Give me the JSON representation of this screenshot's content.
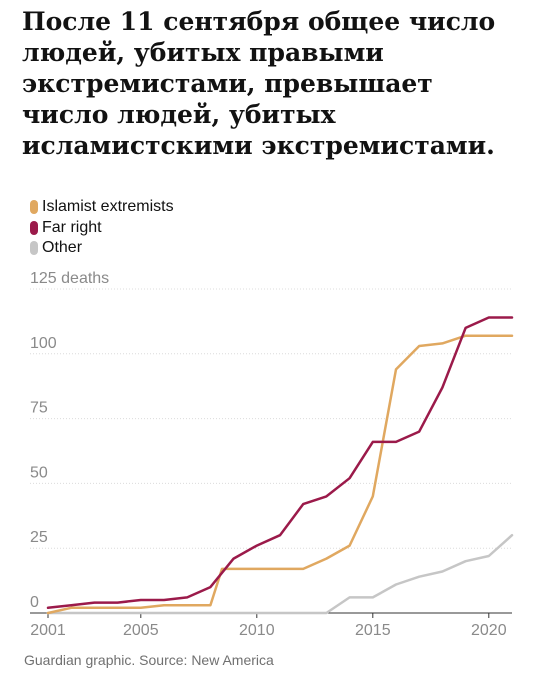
{
  "headline": "После 11 сентября общее число людей, убитых правыми экстремистами, превышает число людей, убитых исламистскими экстремистами.",
  "source": "Guardian graphic. Source: New America",
  "colors": {
    "islamist": "#e0a860",
    "far_right": "#9b1a4a",
    "other": "#c6c6c6",
    "grid": "#dcdcdc",
    "axis": "#333333",
    "tick_text": "#8a8a8a"
  },
  "chart_data": {
    "type": "line",
    "title": "После 11 сентября общее число людей, убитых правыми экстремистами, превышает число людей, убитых исламистскими экстремистами.",
    "xlabel": "",
    "ylabel": "",
    "xlim": [
      2001,
      2021
    ],
    "ylim": [
      0,
      125
    ],
    "grid": true,
    "legend": "top-left",
    "x_ticks": [
      "2001",
      "2005",
      "2010",
      "2015",
      "2020"
    ],
    "y_ticks": [
      "125 deaths",
      "100",
      "75",
      "50",
      "25",
      "0"
    ],
    "series": [
      {
        "name": "Islamist extremists",
        "color": "#e0a860",
        "x": [
          2001,
          2002,
          2003,
          2004,
          2005,
          2006,
          2007,
          2008,
          2008.5,
          2009,
          2010,
          2011,
          2012,
          2013,
          2014,
          2015,
          2016,
          2017,
          2018,
          2019,
          2020,
          2021
        ],
        "values": [
          0,
          2,
          2,
          2,
          2,
          3,
          3,
          3,
          17,
          17,
          17,
          17,
          17,
          21,
          26,
          45,
          94,
          103,
          104,
          107,
          107,
          107
        ]
      },
      {
        "name": "Far right",
        "color": "#9b1a4a",
        "x": [
          2001,
          2002,
          2003,
          2004,
          2005,
          2006,
          2007,
          2008,
          2009,
          2010,
          2011,
          2012,
          2013,
          2014,
          2015,
          2016,
          2017,
          2018,
          2019,
          2020,
          2021
        ],
        "values": [
          2,
          3,
          4,
          4,
          5,
          5,
          6,
          10,
          21,
          26,
          30,
          42,
          45,
          52,
          66,
          66,
          70,
          87,
          110,
          114,
          114
        ]
      },
      {
        "name": "Other",
        "color": "#c6c6c6",
        "x": [
          2001,
          2002,
          2003,
          2004,
          2005,
          2006,
          2007,
          2008,
          2009,
          2010,
          2011,
          2012,
          2013,
          2014,
          2015,
          2016,
          2017,
          2018,
          2019,
          2020,
          2021
        ],
        "values": [
          0,
          0,
          0,
          0,
          0,
          0,
          0,
          0,
          0,
          0,
          0,
          0,
          0,
          6,
          6,
          11,
          14,
          16,
          20,
          22,
          30
        ]
      }
    ]
  }
}
